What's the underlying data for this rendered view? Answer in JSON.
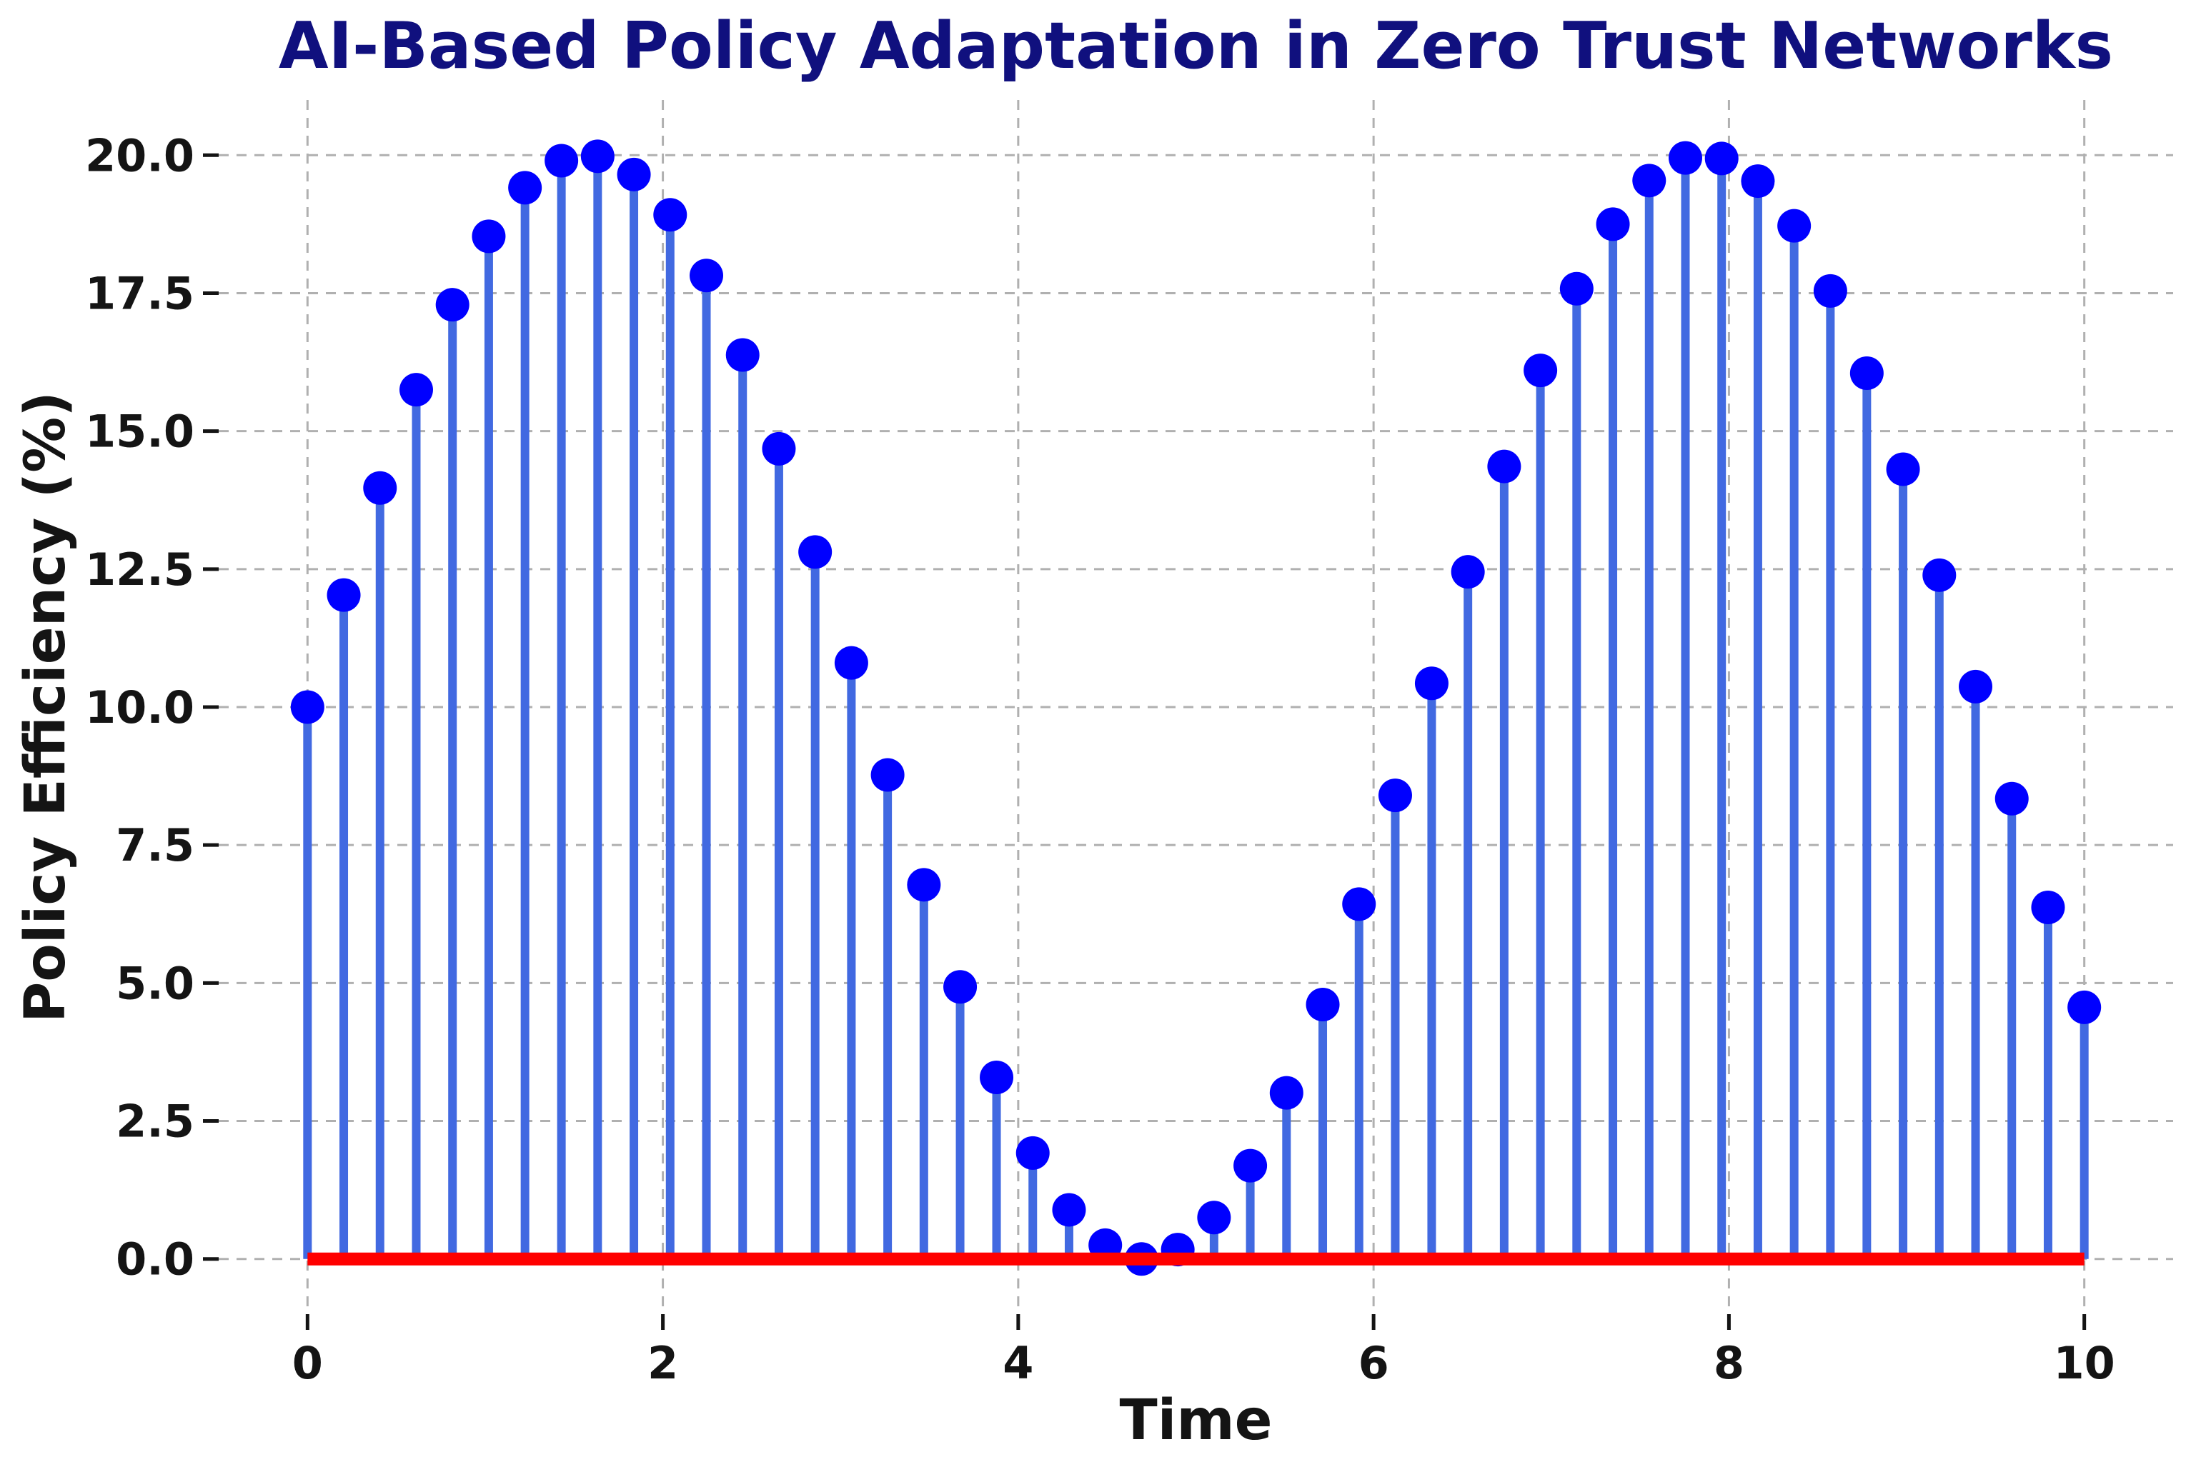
{
  "chart_data": {
    "type": "stem",
    "title": "AI-Based Policy Adaptation in Zero Trust Networks",
    "xlabel": "Time",
    "ylabel": "Policy Efficiency (%)",
    "x": [
      0,
      0.204,
      0.408,
      0.612,
      0.816,
      1.02,
      1.224,
      1.429,
      1.633,
      1.837,
      2.041,
      2.245,
      2.449,
      2.653,
      2.857,
      3.061,
      3.265,
      3.469,
      3.673,
      3.878,
      4.082,
      4.286,
      4.49,
      4.694,
      4.898,
      5.102,
      5.306,
      5.51,
      5.714,
      5.918,
      6.122,
      6.327,
      6.531,
      6.735,
      6.939,
      7.143,
      7.347,
      7.551,
      7.755,
      7.959,
      8.163,
      8.367,
      8.571,
      8.776,
      8.98,
      9.184,
      9.388,
      9.592,
      9.796,
      10
    ],
    "y": [
      10,
      12.03,
      13.97,
      15.75,
      17.29,
      18.53,
      19.41,
      19.9,
      19.98,
      19.65,
      18.92,
      17.82,
      16.38,
      14.68,
      12.81,
      10.8,
      8.77,
      6.78,
      4.93,
      3.29,
      1.92,
      0.89,
      0.25,
      0,
      0.17,
      0.75,
      1.69,
      3.01,
      4.61,
      6.43,
      8.4,
      10.43,
      12.45,
      14.36,
      16.1,
      17.58,
      18.75,
      19.54,
      19.95,
      19.94,
      19.53,
      18.72,
      17.54,
      16.05,
      14.31,
      12.39,
      10.37,
      8.34,
      6.37,
      4.56
    ],
    "xticks": [
      0,
      2,
      4,
      6,
      8,
      10
    ],
    "xtick_labels": [
      "0",
      "2",
      "4",
      "6",
      "8",
      "10"
    ],
    "yticks": [
      0,
      2.5,
      5,
      7.5,
      10,
      12.5,
      15,
      17.5,
      20
    ],
    "ytick_labels": [
      "0.0",
      "2.5",
      "5.0",
      "7.5",
      "10.0",
      "12.5",
      "15.0",
      "17.5",
      "20.0"
    ],
    "xlim": [
      -0.5,
      10.5
    ],
    "ylim": [
      -1,
      21
    ],
    "grid": true,
    "legend": "none",
    "baseline": {
      "y": 0,
      "color": "#ff0000"
    },
    "colors": {
      "stem": "#4169e1",
      "marker": "#0000ff",
      "baseline": "#ff0000",
      "grid": "#b0b0b0",
      "title": "#10107e",
      "text": "#141414",
      "background": "#ffffff"
    }
  }
}
